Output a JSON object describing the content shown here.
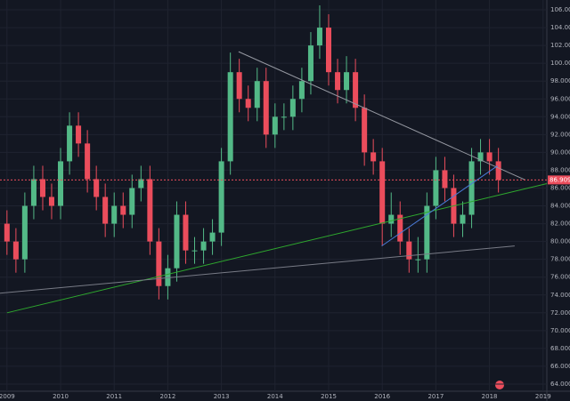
{
  "chart_data": {
    "type": "candlestick",
    "x": [
      2009,
      2009.167,
      2009.333,
      2009.5,
      2009.667,
      2009.833,
      2010,
      2010.167,
      2010.333,
      2010.5,
      2010.667,
      2010.833,
      2011,
      2011.167,
      2011.333,
      2011.5,
      2011.667,
      2011.833,
      2012,
      2012.167,
      2012.333,
      2012.5,
      2012.667,
      2012.833,
      2013,
      2013.167,
      2013.333,
      2013.5,
      2013.667,
      2013.833,
      2014,
      2014.167,
      2014.333,
      2014.5,
      2014.667,
      2014.833,
      2015,
      2015.167,
      2015.333,
      2015.5,
      2015.667,
      2015.833,
      2016,
      2016.167,
      2016.333,
      2016.5,
      2016.667,
      2016.833,
      2017,
      2017.167,
      2017.333,
      2017.5,
      2017.667,
      2017.833,
      2018,
      2018.167
    ],
    "open": [
      82,
      80,
      78,
      84,
      87,
      85,
      84,
      89,
      93,
      91,
      87,
      85,
      82,
      84,
      83,
      86,
      87,
      80,
      75,
      77,
      83,
      79,
      79,
      80,
      81,
      89,
      99,
      96,
      95,
      98,
      92,
      94,
      94,
      96,
      98,
      102,
      104,
      99,
      97,
      99,
      95,
      90,
      89,
      82,
      83,
      80,
      78,
      78,
      84,
      88,
      86,
      82,
      83,
      89,
      90,
      89
    ],
    "high": [
      83.5,
      81.5,
      85.5,
      88.5,
      88.5,
      86.5,
      90.5,
      94.5,
      94.5,
      92.5,
      88.5,
      86.5,
      85.5,
      85.5,
      87.5,
      88.5,
      88.5,
      81.5,
      78.5,
      84.5,
      84.5,
      80.5,
      81.5,
      82.5,
      90.5,
      101.2,
      100.5,
      97.5,
      99.5,
      99.5,
      95.5,
      95.5,
      97.5,
      99.5,
      103.5,
      106.5,
      105.5,
      100.5,
      100.8,
      100.5,
      96.5,
      91.5,
      90.5,
      85.5,
      84.5,
      81.5,
      80.5,
      85.5,
      89.5,
      89.5,
      87.5,
      84.5,
      90.5,
      91.5,
      91.5,
      90.5
    ],
    "low": [
      78.5,
      76.5,
      76.5,
      82.5,
      83.5,
      82.5,
      82.5,
      87.5,
      89.5,
      85.5,
      83.5,
      80.5,
      80.5,
      81.5,
      81.5,
      84.5,
      78.5,
      73.5,
      73.5,
      75.5,
      77.5,
      77.5,
      77.5,
      78.5,
      79.5,
      87.5,
      94.5,
      93.5,
      93.5,
      90.5,
      90.5,
      92.5,
      92.5,
      94.5,
      96.5,
      100.5,
      97.5,
      95.5,
      95.5,
      93.5,
      88.5,
      87.5,
      79.5,
      80.5,
      78.5,
      76.5,
      76.5,
      76.5,
      82.5,
      84.5,
      80.5,
      80.5,
      81.5,
      87.5,
      87.5,
      85.5
    ],
    "close": [
      80,
      78,
      84,
      87,
      85,
      84,
      89,
      93,
      91,
      87,
      85,
      82,
      84,
      83,
      86,
      87,
      80,
      75,
      77,
      83,
      79,
      79,
      80,
      81,
      89,
      99,
      96,
      95,
      98,
      92,
      94,
      94,
      96,
      98,
      102,
      104,
      99,
      97,
      99,
      95,
      90,
      89,
      82,
      83,
      80,
      78,
      78,
      84,
      88,
      86,
      82,
      83,
      89,
      90,
      89,
      86.909
    ],
    "up_color": "#53b987",
    "down_color": "#eb4d5c",
    "xlim": [
      2008.87,
      2019.07
    ],
    "xticks": [
      2009,
      2010,
      2011,
      2012,
      2013,
      2014,
      2015,
      2016,
      2017,
      2018,
      2019
    ],
    "ylim": [
      63.2,
      107.1
    ],
    "yticks": [
      {
        "value": 64,
        "label": "64.000"
      },
      {
        "value": 66,
        "label": "66.000"
      },
      {
        "value": 68,
        "label": "68.000"
      },
      {
        "value": 70,
        "label": "70.000"
      },
      {
        "value": 72,
        "label": "72.000"
      },
      {
        "value": 74,
        "label": "74.000"
      },
      {
        "value": 76,
        "label": "76.000"
      },
      {
        "value": 78,
        "label": "78.000"
      },
      {
        "value": 80,
        "label": "80.000"
      },
      {
        "value": 82,
        "label": "82.000"
      },
      {
        "value": 84,
        "label": "84.000"
      },
      {
        "value": 86,
        "label": "86.000"
      },
      {
        "value": 88,
        "label": "88.000"
      },
      {
        "value": 90,
        "label": "90.000"
      },
      {
        "value": 92,
        "label": "92.000"
      },
      {
        "value": 94,
        "label": "94.000"
      },
      {
        "value": 96,
        "label": "96.000"
      },
      {
        "value": 98,
        "label": "98.000"
      },
      {
        "value": 100,
        "label": "100.000"
      },
      {
        "value": 102,
        "label": "102.000"
      },
      {
        "value": 104,
        "label": "104.000"
      },
      {
        "value": 106,
        "label": "106.000"
      }
    ],
    "grid": true,
    "last_price": 86.909,
    "last_price_color": "#eb4d5c",
    "trendlines": [
      {
        "color": "#9598a1",
        "x": [
          2013.32,
          2018.67
        ],
        "y": [
          101.3,
          86.9
        ]
      },
      {
        "color": "#2ea82e",
        "x": [
          2009,
          2019.07
        ],
        "y": [
          72.0,
          86.5
        ]
      },
      {
        "color": "#787b86",
        "x": [
          2008.87,
          2018.47
        ],
        "y": [
          74.2,
          79.5
        ]
      },
      {
        "color": "#4a7bd8",
        "x": [
          2015.99,
          2018.15
        ],
        "y": [
          79.5,
          88.5
        ]
      }
    ]
  }
}
